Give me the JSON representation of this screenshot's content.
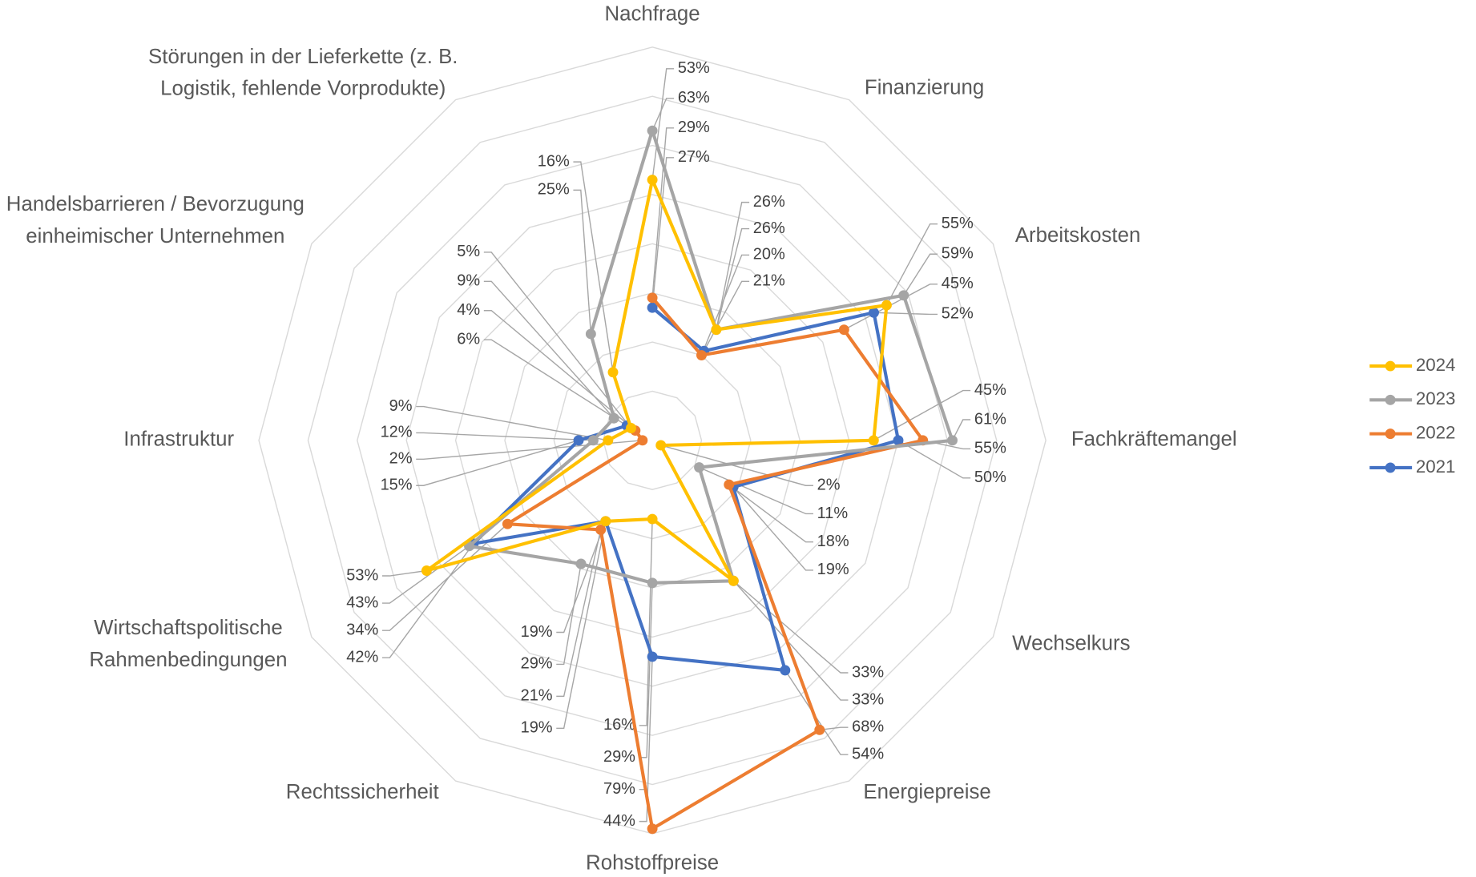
{
  "chart_data": {
    "type": "radar",
    "categories": [
      "Nachfrage",
      "Finanzierung",
      "Arbeitskosten",
      "Fachkräftemangel",
      "Wechselkurs",
      "Energiepreise",
      "Rohstoffpreise",
      "Rechtssicherheit",
      "Wirtschaftspolitische Rahmenbedingungen",
      "Infrastruktur",
      "Handelsbarrieren / Bevorzugung einheimischer Unternehmen",
      "Störungen in der Lieferkette (z. B. Logistik, fehlende Vorprodukte)"
    ],
    "ylim": [
      0,
      80
    ],
    "yticks": [
      0,
      10,
      20,
      30,
      40,
      50,
      60,
      70,
      80
    ],
    "grid": true,
    "legend": "right",
    "series": [
      {
        "name": "2024",
        "color": "#FFC000",
        "values": [
          53,
          26,
          55,
          45,
          2,
          33,
          16,
          19,
          53,
          9,
          5,
          16
        ],
        "value_labels": [
          "53%",
          "26%",
          "55%",
          "45%",
          "2%",
          "33%",
          "16%",
          "19%",
          "53%",
          "9%",
          "5%",
          "16%"
        ]
      },
      {
        "name": "2023",
        "color": "#A5A5A5",
        "values": [
          63,
          26,
          59,
          61,
          11,
          33,
          29,
          29,
          43,
          12,
          9,
          25
        ],
        "value_labels": [
          "63%",
          "26%",
          "59%",
          "61%",
          "11%",
          "33%",
          "29%",
          "29%",
          "43%",
          "12%",
          "9%",
          "25%"
        ]
      },
      {
        "name": "2022",
        "color": "#ED7D31",
        "values": [
          29,
          20,
          45,
          55,
          18,
          68,
          79,
          21,
          34,
          2,
          4,
          null
        ],
        "value_labels": [
          "29%",
          "20%",
          "45%",
          "55%",
          "18%",
          "68%",
          "79%",
          "21%",
          "34%",
          "2%",
          "4%",
          null
        ]
      },
      {
        "name": "2021",
        "color": "#4472C4",
        "values": [
          27,
          21,
          52,
          50,
          19,
          54,
          44,
          19,
          42,
          15,
          6,
          null
        ],
        "value_labels": [
          "27%",
          "21%",
          "52%",
          "50%",
          "19%",
          "54%",
          "44%",
          "19%",
          "42%",
          "15%",
          "6%",
          null
        ]
      }
    ]
  }
}
